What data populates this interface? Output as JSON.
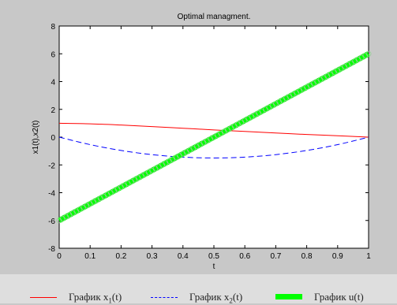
{
  "chart_data": {
    "type": "line",
    "title": "Optimal managment.",
    "xlabel": "t",
    "ylabel": "x1(t),x2(t)",
    "xlim": [
      0,
      1
    ],
    "ylim": [
      -8,
      8
    ],
    "xticks": [
      0,
      0.1,
      0.2,
      0.3,
      0.4,
      0.5,
      0.6,
      0.7,
      0.8,
      0.9,
      1
    ],
    "xtick_labels": [
      "0",
      "0.1",
      "0.2",
      "0.3",
      "0.4",
      "0.5",
      "0.6",
      "0.7",
      "0.8",
      "0.9",
      "1"
    ],
    "yticks": [
      -8,
      -6,
      -4,
      -2,
      0,
      2,
      4,
      6,
      8
    ],
    "ytick_labels": [
      "-8",
      "-6",
      "-4",
      "-2",
      "0",
      "2",
      "4",
      "6",
      "8"
    ],
    "grid": false,
    "legend_position": "bottom",
    "series": [
      {
        "name": "График x1(t)",
        "legend_prefix": "График x",
        "legend_sub": "1",
        "legend_suffix": "(t)",
        "color": "#ff0000",
        "style": "solid",
        "x": [
          0,
          0.1,
          0.2,
          0.3,
          0.4,
          0.5,
          0.6,
          0.7,
          0.8,
          0.9,
          1
        ],
        "y": [
          1.0,
          0.96,
          0.87,
          0.76,
          0.64,
          0.52,
          0.41,
          0.3,
          0.19,
          0.1,
          0.0
        ]
      },
      {
        "name": "График x2(t)",
        "legend_prefix": "График x",
        "legend_sub": "2",
        "legend_suffix": "(t)",
        "color": "#0000ff",
        "style": "dashed",
        "x": [
          0,
          0.1,
          0.2,
          0.3,
          0.4,
          0.5,
          0.6,
          0.7,
          0.8,
          0.9,
          1
        ],
        "y": [
          0.0,
          -0.54,
          -0.96,
          -1.26,
          -1.44,
          -1.5,
          -1.44,
          -1.26,
          -0.96,
          -0.54,
          0.0
        ]
      },
      {
        "name": "График u(t)",
        "legend_prefix": "График u(t)",
        "legend_sub": "",
        "legend_suffix": "",
        "color": "#00ff00",
        "style": "thick-markers",
        "x": [
          0,
          1
        ],
        "y": [
          -6,
          6
        ]
      }
    ]
  }
}
